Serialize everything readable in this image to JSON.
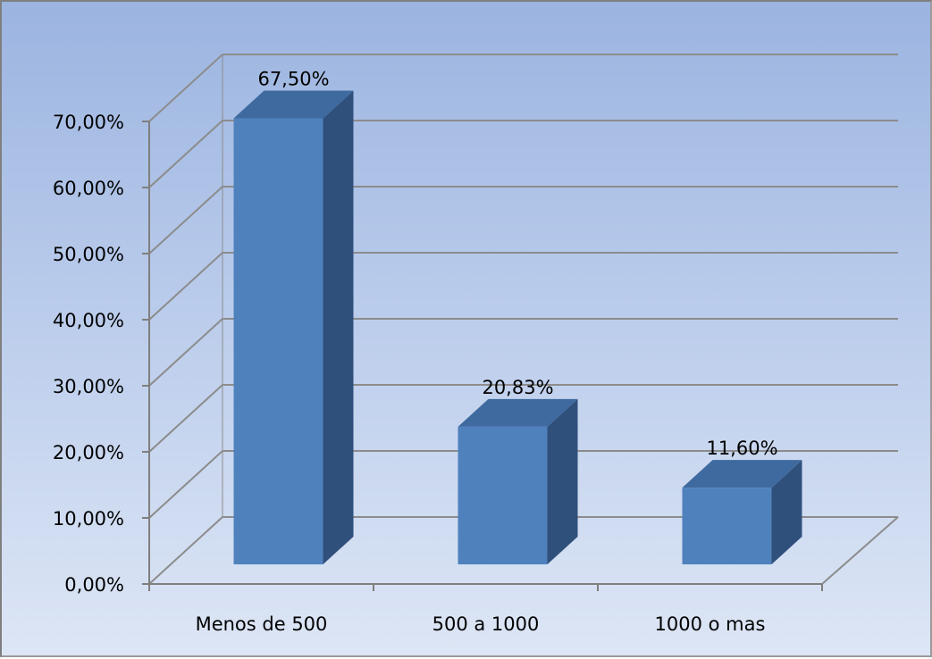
{
  "chart_data": {
    "type": "bar",
    "title": "",
    "xlabel": "",
    "ylabel": "",
    "categories": [
      "Menos de 500",
      "500 a 1000",
      "1000 o mas"
    ],
    "values": [
      67.5,
      20.83,
      11.6
    ],
    "data_labels": [
      "67,50%",
      "20,83%",
      "11,60%"
    ],
    "ylim": [
      0,
      70
    ],
    "y_ticks": [
      0,
      10,
      20,
      30,
      40,
      50,
      60,
      70
    ],
    "y_tick_labels": [
      "0,00%",
      "10,00%",
      "20,00%",
      "30,00%",
      "40,00%",
      "50,00%",
      "60,00%",
      "70,00%"
    ],
    "grid": true,
    "legend": "none",
    "style": "3d-column",
    "colors": {
      "bar_front": "#4f81bd",
      "bar_top": "#3f6aa0",
      "bar_side": "#30507c",
      "gridline": "#8c8c8c",
      "background_top": "#9bb4e0",
      "background_bottom": "#dde6f5"
    }
  }
}
